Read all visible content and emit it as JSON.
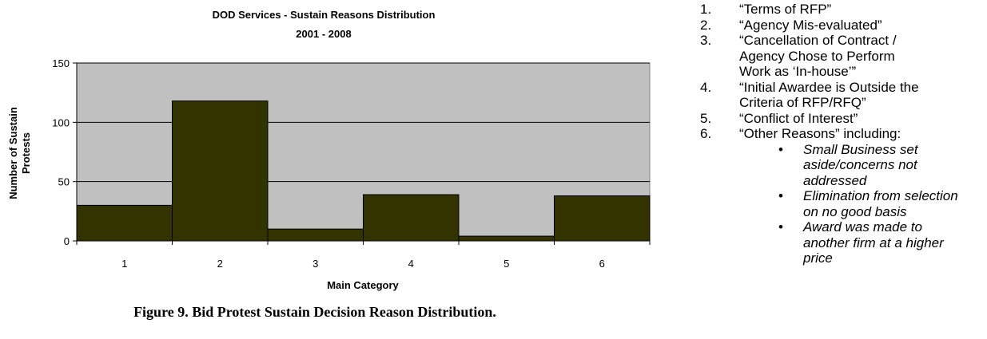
{
  "chart_data": {
    "type": "bar",
    "title": "DOD Services - Sustain Reasons Distribution",
    "subtitle": "2001 - 2008",
    "xlabel": "Main Category",
    "ylabel_lines": [
      "Number of Sustain",
      "Protests"
    ],
    "categories": [
      "1",
      "2",
      "3",
      "4",
      "5",
      "6"
    ],
    "values": [
      30,
      118,
      10,
      39,
      4,
      38
    ],
    "ylim": [
      0,
      150
    ],
    "yticks": [
      0,
      50,
      100,
      150
    ],
    "grid": true,
    "colors": {
      "plot_background": "#c0c0c0",
      "bar": "#333300",
      "border": "#000000"
    }
  },
  "caption": "Figure 9. Bid Protest Sustain Decision Reason Distribution.",
  "legend": {
    "items": [
      {
        "num": "1.",
        "lines": [
          "“Terms of RFP”"
        ]
      },
      {
        "num": "2.",
        "lines": [
          "“Agency Mis-evaluated”"
        ]
      },
      {
        "num": "3.",
        "lines": [
          "“Cancellation of Contract /",
          "Agency  Chose to Perform",
          "Work as ‘In-house’”"
        ]
      },
      {
        "num": "4.",
        "lines": [
          "“Initial Awardee is Outside the",
          "Criteria of RFP/RFQ”"
        ]
      },
      {
        "num": "5.",
        "lines": [
          "“Conflict of Interest”"
        ]
      },
      {
        "num": "6.",
        "lines": [
          "“Other Reasons” including:"
        ]
      }
    ],
    "sub_items": [
      {
        "lines": [
          "Small Business set",
          "aside/concerns not",
          "addressed"
        ]
      },
      {
        "lines": [
          "Elimination from selection",
          "on no good basis"
        ]
      },
      {
        "lines": [
          "Award was made to",
          "another firm at a higher",
          "price"
        ]
      }
    ],
    "bullet": "•"
  }
}
